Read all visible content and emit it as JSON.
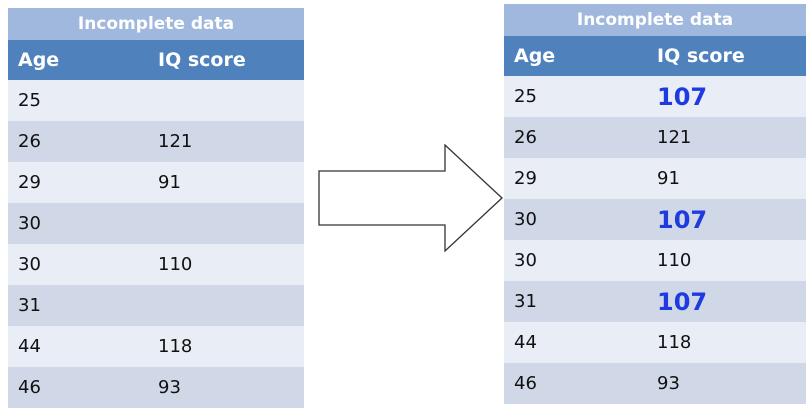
{
  "left_table": {
    "caption": "Incomplete data",
    "headers": [
      "Age",
      "IQ score"
    ],
    "rows": [
      {
        "age": "25",
        "iq": ""
      },
      {
        "age": "26",
        "iq": "121"
      },
      {
        "age": "29",
        "iq": "91"
      },
      {
        "age": "30",
        "iq": ""
      },
      {
        "age": "30",
        "iq": "110"
      },
      {
        "age": "31",
        "iq": ""
      },
      {
        "age": "44",
        "iq": "118"
      },
      {
        "age": "46",
        "iq": "93"
      }
    ]
  },
  "right_table": {
    "caption": "Incomplete data",
    "headers": [
      "Age",
      "IQ score"
    ],
    "rows": [
      {
        "age": "25",
        "iq": "107",
        "imputed": true
      },
      {
        "age": "26",
        "iq": "121",
        "imputed": false
      },
      {
        "age": "29",
        "iq": "91",
        "imputed": false
      },
      {
        "age": "30",
        "iq": "107",
        "imputed": true
      },
      {
        "age": "30",
        "iq": "110",
        "imputed": false
      },
      {
        "age": "31",
        "iq": "107",
        "imputed": true
      },
      {
        "age": "44",
        "iq": "118",
        "imputed": false
      },
      {
        "age": "46",
        "iq": "93",
        "imputed": false
      }
    ]
  },
  "colors": {
    "caption_bg": "#a0b8dd",
    "header_bg": "#4f81bd",
    "row_light": "#e9edf5",
    "row_dark": "#d0d8e8",
    "imputed_text": "#1f3be0"
  },
  "arrow": {
    "direction": "right",
    "style": "outline"
  }
}
